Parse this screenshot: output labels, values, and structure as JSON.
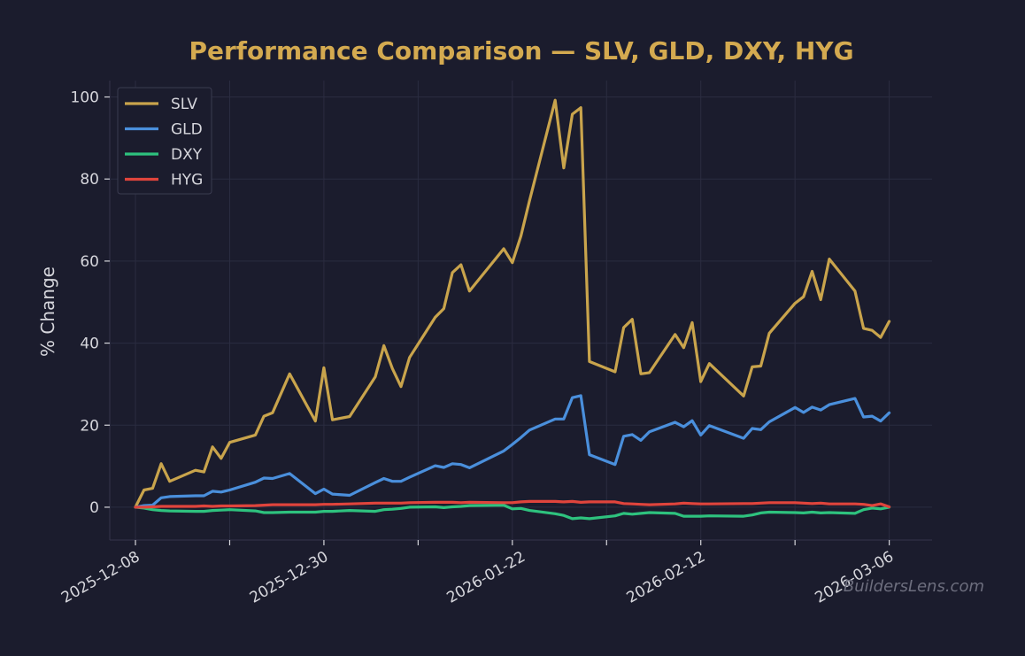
{
  "chart_data": {
    "type": "line",
    "title": "Performance Comparison — SLV, GLD, DXY, HYG",
    "xlabel": "",
    "ylabel": "% Change",
    "ylim": [
      -8,
      104
    ],
    "yticks": [
      0,
      20,
      40,
      60,
      80,
      100
    ],
    "xrange": [
      "2025-12-05",
      "2026-03-11"
    ],
    "xtick_labels": [
      "2025-12-08",
      "2025-12-30",
      "2026-01-22",
      "2026-02-12",
      "2026-03-06"
    ],
    "grid": true,
    "legend_position": "top-left",
    "watermark": "BuildersLens.com",
    "background": "#1b1c2d",
    "x": [
      "2025-12-08",
      "2025-12-09",
      "2025-12-10",
      "2025-12-11",
      "2025-12-12",
      "2025-12-15",
      "2025-12-16",
      "2025-12-17",
      "2025-12-18",
      "2025-12-19",
      "2025-12-22",
      "2025-12-23",
      "2025-12-24",
      "2025-12-26",
      "2025-12-29",
      "2025-12-30",
      "2025-12-31",
      "2026-01-02",
      "2026-01-05",
      "2026-01-06",
      "2026-01-07",
      "2026-01-08",
      "2026-01-09",
      "2026-01-12",
      "2026-01-13",
      "2026-01-14",
      "2026-01-15",
      "2026-01-16",
      "2026-01-20",
      "2026-01-21",
      "2026-01-22",
      "2026-01-23",
      "2026-01-26",
      "2026-01-27",
      "2026-01-28",
      "2026-01-29",
      "2026-01-30",
      "2026-02-02",
      "2026-02-03",
      "2026-02-04",
      "2026-02-05",
      "2026-02-06",
      "2026-02-09",
      "2026-02-10",
      "2026-02-11",
      "2026-02-12",
      "2026-02-13",
      "2026-02-17",
      "2026-02-18",
      "2026-02-19",
      "2026-02-20",
      "2026-02-23",
      "2026-02-24",
      "2026-02-25",
      "2026-02-26",
      "2026-02-27",
      "2026-03-02",
      "2026-03-03",
      "2026-03-04",
      "2026-03-05",
      "2026-03-06"
    ],
    "series": [
      {
        "name": "SLV",
        "color": "#c9a44c",
        "values": [
          0,
          4.2,
          4.6,
          10.6,
          6.3,
          9,
          8.6,
          14.7,
          11.9,
          15.8,
          17.6,
          22.2,
          23,
          32.5,
          21,
          34,
          21.3,
          22.1,
          31.8,
          39.4,
          33.8,
          29.4,
          36.5,
          46.3,
          48.4,
          57.2,
          59.1,
          52.7,
          63,
          59.6,
          66.1,
          74.7,
          99.2,
          82.7,
          95.8,
          97.4,
          35.5,
          33,
          43.8,
          45.8,
          32.5,
          32.8,
          42.1,
          38.9,
          45,
          30.6,
          35,
          27.1,
          34.2,
          34.4,
          42.4,
          49.7,
          51.3,
          57.5,
          50.6,
          60.5,
          52.7,
          43.6,
          43.1,
          41.4,
          45.3
        ]
      },
      {
        "name": "GLD",
        "color": "#4a8fdc",
        "values": [
          0,
          0.4,
          0.5,
          2.3,
          2.6,
          2.8,
          2.8,
          3.9,
          3.7,
          4.2,
          6.1,
          7.1,
          7,
          8.2,
          3.3,
          4.4,
          3.2,
          2.9,
          6,
          7,
          6.3,
          6.3,
          7.3,
          10.1,
          9.7,
          10.6,
          10.4,
          9.6,
          13.7,
          15.3,
          17,
          18.8,
          21.5,
          21.5,
          26.7,
          27.2,
          12.8,
          10.4,
          17.3,
          17.7,
          16.3,
          18.4,
          20.7,
          19.6,
          21.1,
          17.6,
          19.9,
          16.8,
          19.2,
          18.9,
          20.8,
          24.3,
          23.1,
          24.4,
          23.7,
          25,
          26.5,
          22,
          22.2,
          21,
          23
        ]
      },
      {
        "name": "DXY",
        "color": "#2ec27e",
        "values": [
          0,
          -0.2,
          -0.6,
          -0.8,
          -0.9,
          -1,
          -1,
          -0.8,
          -0.7,
          -0.6,
          -0.9,
          -1.3,
          -1.3,
          -1.2,
          -1.2,
          -1,
          -1,
          -0.8,
          -1,
          -0.6,
          -0.5,
          -0.3,
          0,
          0.1,
          -0.1,
          0.1,
          0.2,
          0.4,
          0.5,
          -0.4,
          -0.3,
          -0.8,
          -1.6,
          -2,
          -2.8,
          -2.6,
          -2.8,
          -2.1,
          -1.5,
          -1.7,
          -1.5,
          -1.3,
          -1.5,
          -2.2,
          -2.2,
          -2.2,
          -2.1,
          -2.2,
          -1.9,
          -1.4,
          -1.2,
          -1.3,
          -1.4,
          -1.2,
          -1.4,
          -1.3,
          -1.5,
          -0.6,
          -0.2,
          -0.4,
          0
        ]
      },
      {
        "name": "HYG",
        "color": "#e0443c",
        "values": [
          0,
          0,
          0.1,
          0.2,
          0.2,
          0.2,
          0.3,
          0.2,
          0.3,
          0.3,
          0.4,
          0.5,
          0.6,
          0.6,
          0.6,
          0.7,
          0.7,
          0.8,
          1,
          1,
          1,
          1,
          1.1,
          1.2,
          1.2,
          1.2,
          1.1,
          1.2,
          1.1,
          1.1,
          1.3,
          1.4,
          1.4,
          1.3,
          1.4,
          1.2,
          1.3,
          1.3,
          0.9,
          0.8,
          0.7,
          0.6,
          0.8,
          1,
          0.9,
          0.8,
          0.8,
          0.9,
          0.9,
          1,
          1.1,
          1.1,
          1,
          0.9,
          1,
          0.8,
          0.8,
          0.7,
          0.4,
          0.8,
          0.1
        ]
      }
    ]
  }
}
